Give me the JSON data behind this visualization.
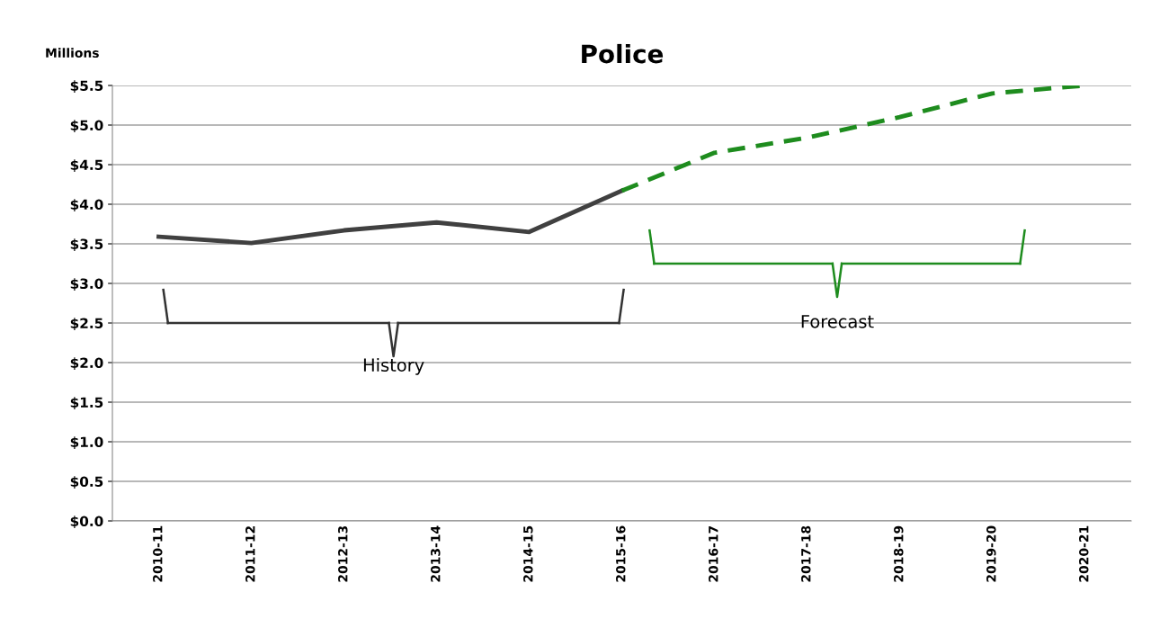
{
  "chart_data": {
    "type": "line",
    "title": "Police",
    "ylabel": "Millions",
    "categories": [
      "2010-11",
      "2011-12",
      "2012-13",
      "2013-14",
      "2014-15",
      "2015-16",
      "2016-17",
      "2017-18",
      "2018-19",
      "2019-20",
      "2020-21"
    ],
    "series": [
      {
        "color": "#404040",
        "line_style": "solid",
        "values": [
          3.59,
          3.51,
          3.67,
          3.77,
          3.65,
          4.17,
          null,
          null,
          null,
          null,
          null
        ]
      },
      {
        "color": "#1e8c1e",
        "line_style": "dashed",
        "values": [
          null,
          null,
          null,
          null,
          null,
          4.17,
          4.65,
          4.84,
          5.1,
          5.4,
          5.5
        ]
      }
    ],
    "ylim": [
      0,
      5.5
    ],
    "yticks": [
      {
        "value": 0,
        "label": "$0.0"
      },
      {
        "value": 0.5,
        "label": "$0.5"
      },
      {
        "value": 1,
        "label": "$1.0"
      },
      {
        "value": 1.5,
        "label": "$1.5"
      },
      {
        "value": 2,
        "label": "$2.0"
      },
      {
        "value": 2.5,
        "label": "$2.5"
      },
      {
        "value": 3,
        "label": "$3.0"
      },
      {
        "value": 3.5,
        "label": "$3.5"
      },
      {
        "value": 4,
        "label": "$4.0"
      },
      {
        "value": 4.5,
        "label": "$4.5"
      },
      {
        "value": 5,
        "label": "$5.0"
      },
      {
        "value": 5.5,
        "label": "$5.5"
      }
    ],
    "grid": "y",
    "legend": false,
    "marker": "none",
    "annotations": [
      "History",
      "Forecast"
    ]
  }
}
